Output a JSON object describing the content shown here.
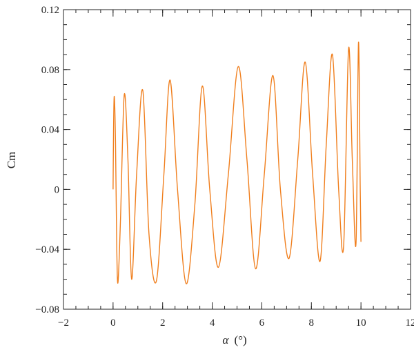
{
  "chart_data": {
    "type": "line",
    "title": "",
    "xlabel_symbol": "α",
    "xlabel_unit": "(°)",
    "ylabel": "Cm",
    "xlim": [
      -2,
      12
    ],
    "ylim": [
      -0.08,
      0.12
    ],
    "xticks": [
      -2,
      0,
      2,
      4,
      6,
      8,
      10,
      12
    ],
    "xtick_labels": [
      "−2",
      "0",
      "2",
      "4",
      "6",
      "8",
      "10",
      "12"
    ],
    "yticks": [
      -0.08,
      -0.04,
      0,
      0.04,
      0.08,
      0.12
    ],
    "ytick_labels": [
      "−0.08",
      "−0.04",
      "0",
      "0.04",
      "0.08",
      "0.12"
    ],
    "x_minor_step": 0.5,
    "y_minor_step": 0.01,
    "grid": false,
    "line_color": "#F07F1E",
    "series": [
      {
        "description_values": "closed oscillating curve, alpha vs Cm (nodes sampled)",
        "x": [
          0.0,
          0.02,
          0.05,
          0.1,
          0.15,
          0.2,
          0.3,
          0.45,
          0.6,
          0.75,
          0.95,
          1.2,
          1.45,
          1.75,
          2.05,
          2.3,
          2.6,
          2.95,
          3.3,
          3.6,
          3.9,
          4.25,
          4.65,
          5.05,
          5.4,
          5.75,
          6.1,
          6.45,
          6.75,
          7.1,
          7.45,
          7.75,
          8.05,
          8.35,
          8.6,
          8.85,
          9.1,
          9.3,
          9.5,
          9.65,
          9.8,
          9.9,
          9.97,
          10.0
        ],
        "y": [
          0.0,
          0.04,
          0.062,
          0.03,
          -0.04,
          -0.062,
          -0.02,
          0.063,
          0.02,
          -0.06,
          0.01,
          0.066,
          -0.03,
          -0.061,
          0.01,
          0.073,
          0.0,
          -0.063,
          -0.01,
          0.069,
          0.0,
          -0.052,
          0.01,
          0.082,
          0.02,
          -0.053,
          0.01,
          0.076,
          0.0,
          -0.046,
          0.02,
          0.085,
          0.01,
          -0.048,
          0.03,
          0.09,
          0.0,
          -0.038,
          0.094,
          0.02,
          -0.036,
          0.098,
          0.0,
          -0.035
        ]
      }
    ]
  }
}
